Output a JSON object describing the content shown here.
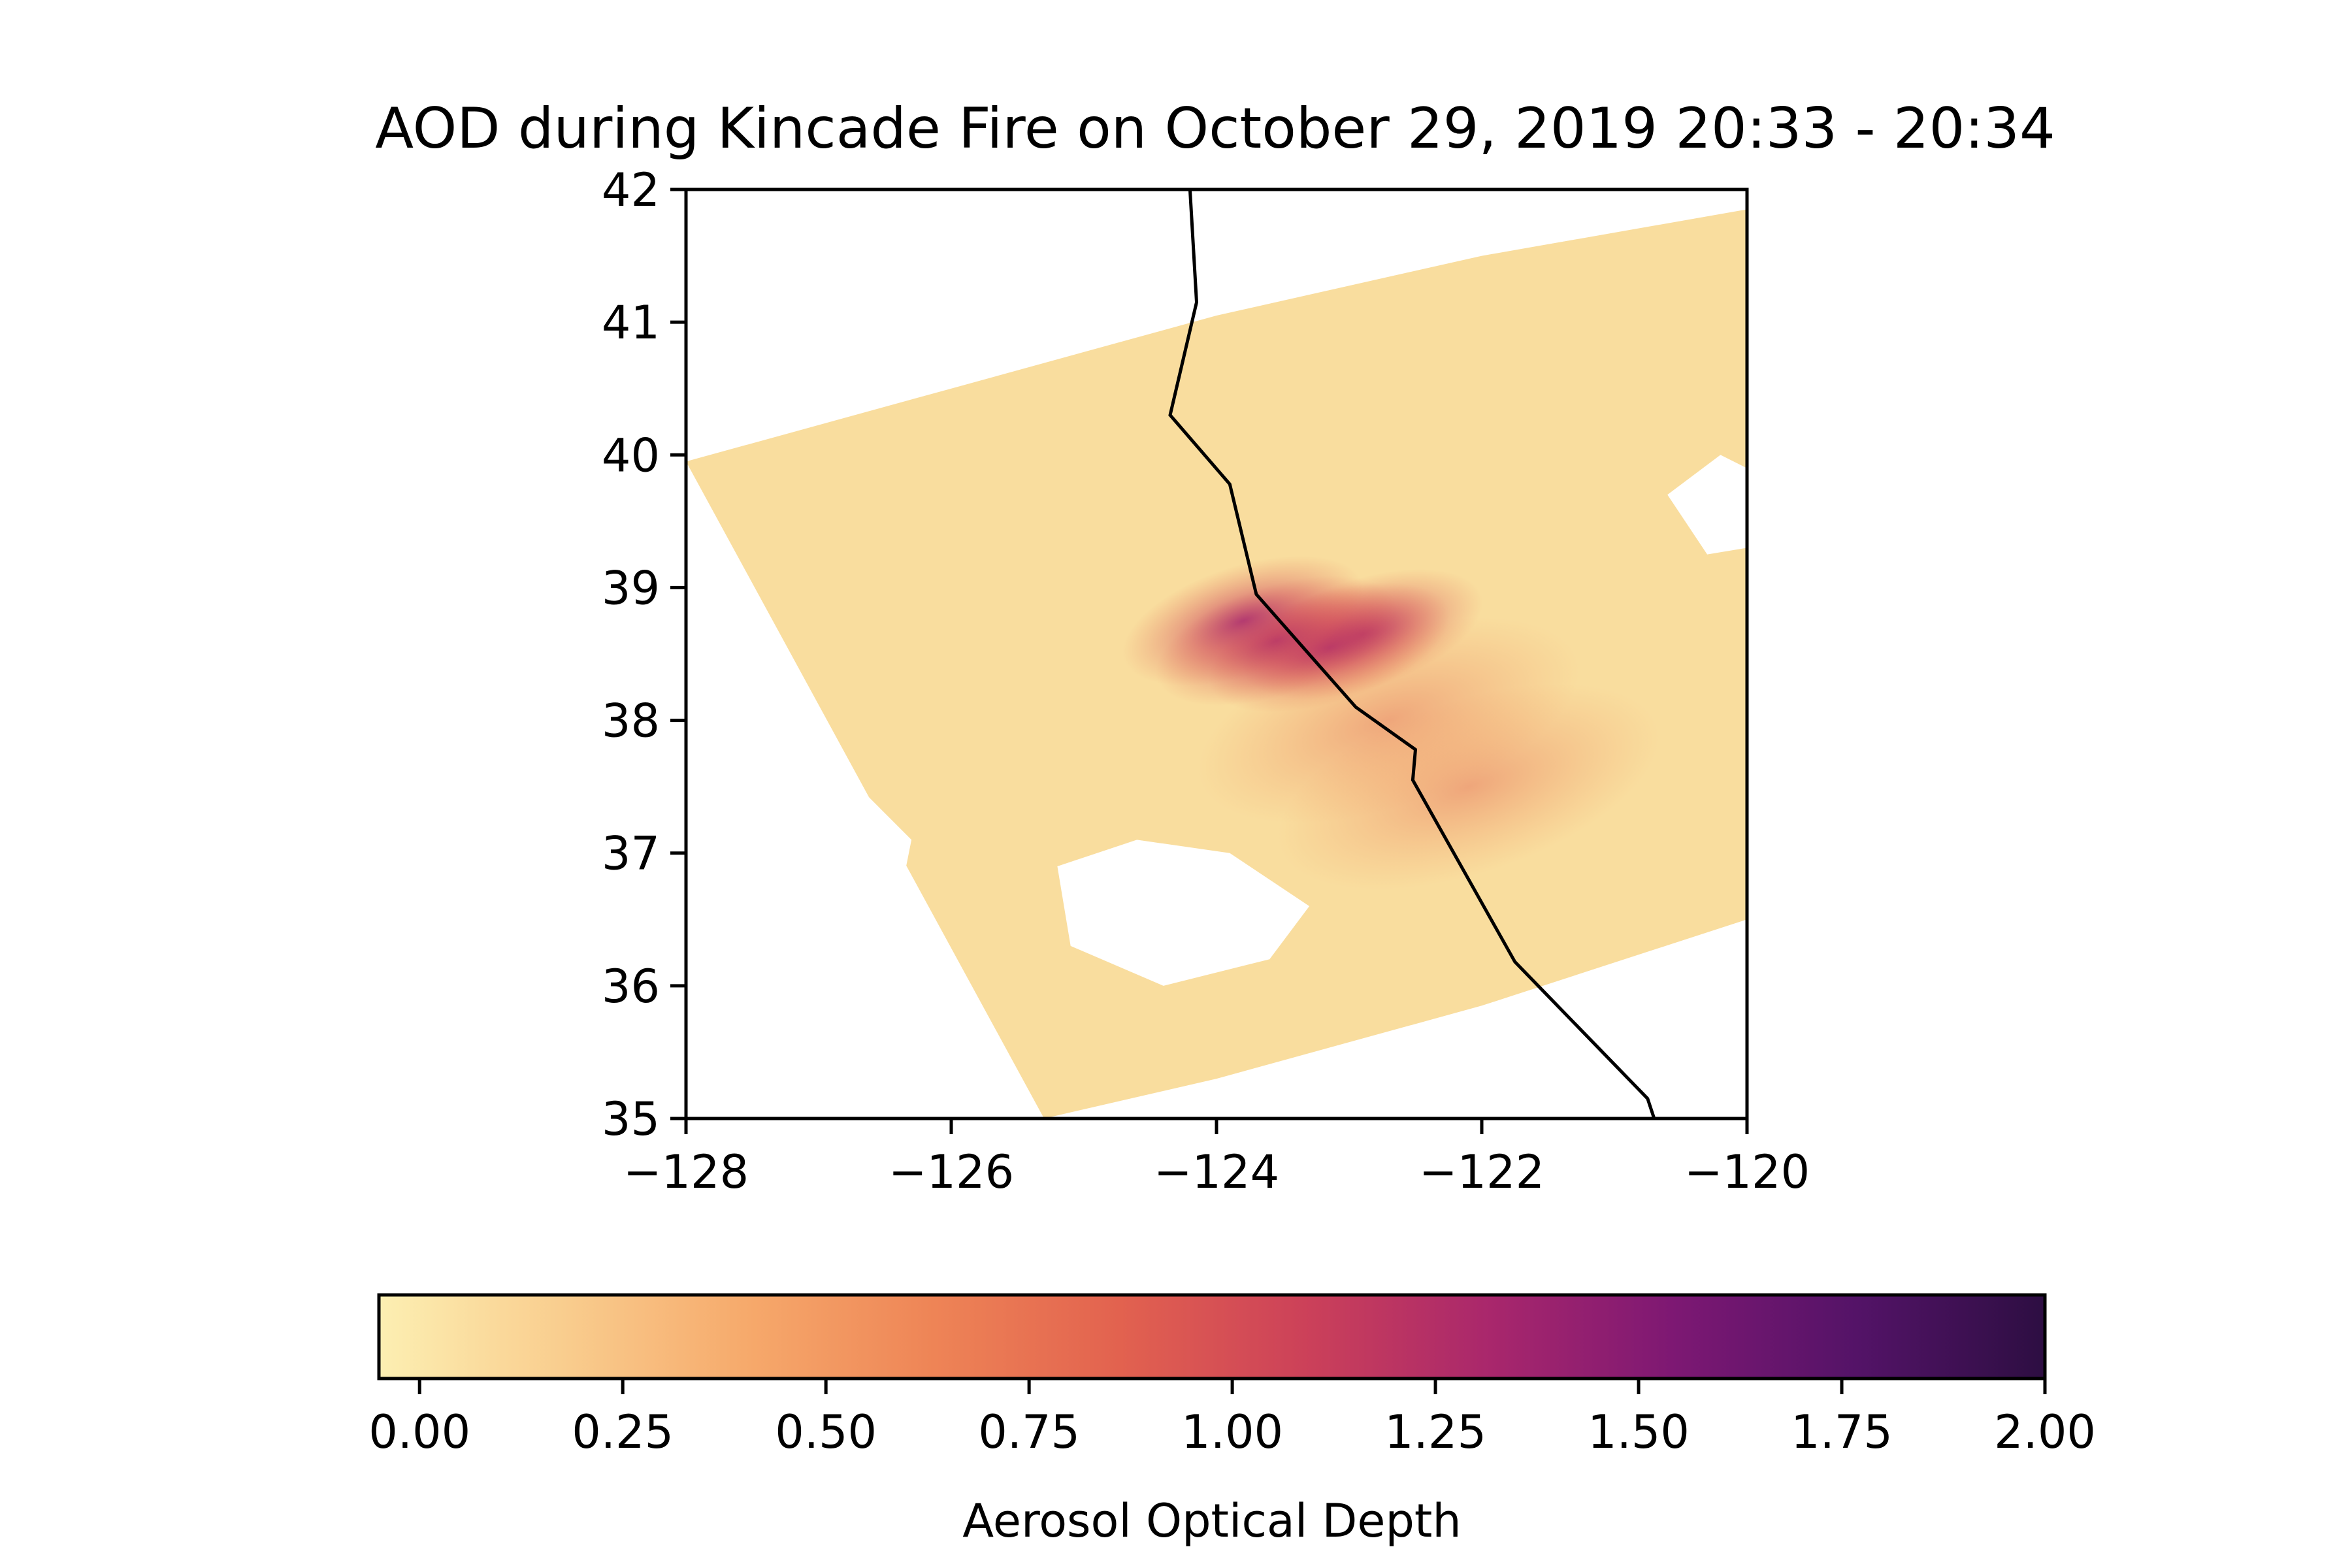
{
  "title": "AOD during Kincade Fire on October 29, 2019 20:33 - 20:34",
  "map": {
    "xlim": [
      -128,
      -120
    ],
    "ylim": [
      35,
      42
    ],
    "x_ticks": [
      -128,
      -126,
      -124,
      -122,
      -120
    ],
    "x_tick_labels": [
      "−128",
      "−126",
      "−124",
      "−122",
      "−120"
    ],
    "y_ticks": [
      35,
      36,
      37,
      38,
      39,
      40,
      41,
      42
    ],
    "y_tick_labels": [
      "35",
      "36",
      "37",
      "38",
      "39",
      "40",
      "41",
      "42"
    ],
    "grid": false,
    "swath_outline": [
      [
        -128,
        39.95
      ],
      [
        -126,
        40.5
      ],
      [
        -124,
        41.05
      ],
      [
        -122,
        41.5
      ],
      [
        -120,
        41.85
      ],
      [
        -120,
        36.5
      ],
      [
        -122,
        35.85
      ],
      [
        -124,
        35.3
      ],
      [
        -125.3,
        35
      ]
    ],
    "clear_regions": [
      {
        "name": "cloud-gap-west",
        "polygon": [
          [
            -128,
            37.3
          ],
          [
            -127.3,
            37.8
          ],
          [
            -126.8,
            37.6
          ],
          [
            -126.3,
            37.1
          ],
          [
            -126.4,
            36.6
          ],
          [
            -126.9,
            36.35
          ],
          [
            -127.5,
            36.35
          ],
          [
            -128,
            36.6
          ]
        ]
      },
      {
        "name": "cloud-gap-south",
        "polygon": [
          [
            -125.2,
            36.9
          ],
          [
            -124.6,
            37.1
          ],
          [
            -123.9,
            37.0
          ],
          [
            -123.3,
            36.6
          ],
          [
            -123.6,
            36.2
          ],
          [
            -124.4,
            36.0
          ],
          [
            -125.1,
            36.3
          ]
        ]
      },
      {
        "name": "cloud-gap-northeast",
        "polygon": [
          [
            -120.6,
            39.7
          ],
          [
            -120.2,
            40.0
          ],
          [
            -120.0,
            39.9
          ],
          [
            -120.0,
            39.3
          ],
          [
            -120.3,
            39.25
          ]
        ]
      }
    ],
    "smoke_plumes": [
      {
        "name": "kincade-plume",
        "lon": -122.9,
        "lat": 38.65,
        "intensity": 1.1
      },
      {
        "name": "plume-core",
        "lon": -123.15,
        "lat": 38.55,
        "intensity": 1.2
      },
      {
        "name": "plume-mid",
        "lon": -123.55,
        "lat": 38.6,
        "intensity": 0.9
      },
      {
        "name": "plume-west",
        "lon": -123.8,
        "lat": 38.75,
        "intensity": 0.8
      },
      {
        "name": "bay-haze",
        "lon": -122.1,
        "lat": 37.5,
        "intensity": 0.6
      },
      {
        "name": "delta-haze",
        "lon": -122.7,
        "lat": 38.0,
        "intensity": 0.6
      }
    ],
    "state_boundary": [
      [
        -124.2,
        42.0
      ],
      [
        -124.15,
        41.15
      ],
      [
        -124.35,
        40.3
      ],
      [
        -123.9,
        39.78
      ],
      [
        -123.7,
        38.95
      ],
      [
        -122.95,
        38.1
      ],
      [
        -122.5,
        37.78
      ],
      [
        -122.52,
        37.55
      ],
      [
        -121.75,
        36.18
      ],
      [
        -120.75,
        35.15
      ],
      [
        -120.7,
        35.0
      ]
    ]
  },
  "colorbar": {
    "label": "Aerosol Optical Depth",
    "colormap": "magma_r",
    "range": [
      -0.05,
      2.0
    ],
    "ticks": [
      0.0,
      0.25,
      0.5,
      0.75,
      1.0,
      1.25,
      1.5,
      1.75,
      2.0
    ],
    "tick_labels": [
      "0.00",
      "0.25",
      "0.50",
      "0.75",
      "1.00",
      "1.25",
      "1.50",
      "1.75",
      "2.00"
    ],
    "color_stops": [
      "#fcefb2",
      "#f9cd8e",
      "#f6a96b",
      "#ee8456",
      "#e2624f",
      "#cc4159",
      "#a9276c",
      "#7d1873",
      "#531367",
      "#2d0e42"
    ]
  }
}
